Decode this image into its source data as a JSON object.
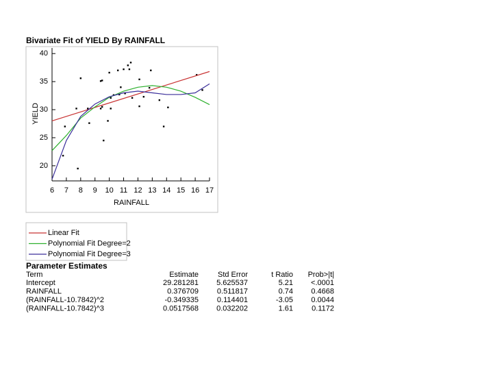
{
  "chart_data": {
    "type": "scatter",
    "title": "Bivariate Fit of YIELD By RAINFALL",
    "x_label": "RAINFALL",
    "y_label": "YIELD",
    "xlim": [
      6,
      17
    ],
    "ylim": [
      17.3,
      41
    ],
    "xticks": [
      6,
      7,
      8,
      9,
      10,
      11,
      12,
      13,
      14,
      15,
      16,
      17
    ],
    "yticks": [
      20,
      25,
      30,
      35,
      40
    ],
    "series": [
      {
        "kind": "scatter",
        "color": "#000000",
        "x": [
          6.77,
          6.9,
          7.8,
          8.0,
          7.7,
          8.5,
          8.6,
          9.4,
          9.5,
          9.4,
          9.6,
          9.5,
          9.9,
          10.0,
          10.1,
          10.1,
          10.3,
          10.6,
          10.7,
          10.8,
          11.0,
          11.1,
          11.3,
          11.4,
          11.5,
          11.6,
          12.1,
          12.1,
          12.4,
          12.9,
          12.8,
          13.5,
          13.8,
          14.1,
          16.1,
          16.5
        ],
        "values": [
          21.8,
          27.0,
          19.5,
          35.6,
          30.2,
          30.2,
          27.6,
          35.1,
          35.2,
          30.2,
          24.5,
          30.5,
          28.0,
          36.6,
          30.2,
          32.1,
          32.6,
          37.0,
          32.7,
          34.0,
          37.2,
          32.9,
          37.9,
          37.2,
          38.4,
          32.1,
          35.4,
          30.6,
          32.3,
          37.0,
          33.9,
          31.7,
          27.0,
          30.4,
          36.2,
          33.5
        ]
      },
      {
        "kind": "line",
        "name": "Linear Fit",
        "color": "#c83232",
        "x": [
          6,
          17
        ],
        "values": [
          28.0,
          36.8
        ]
      },
      {
        "kind": "line",
        "name": "Polynomial Fit Degree=2",
        "color": "#2eb02e",
        "x": [
          6,
          7,
          8,
          9,
          10,
          11,
          12,
          13,
          14,
          15,
          16,
          17
        ],
        "values": [
          22.7,
          25.4,
          28.5,
          30.5,
          32.2,
          33.3,
          34.0,
          34.3,
          34.0,
          33.3,
          32.2,
          30.9
        ]
      },
      {
        "kind": "line",
        "name": "Polynomial Fit Degree=3",
        "color": "#3a2e9a",
        "x": [
          6,
          7,
          8,
          9,
          10,
          11,
          12,
          13,
          14,
          15,
          16,
          17
        ],
        "values": [
          17.6,
          24.5,
          28.8,
          31.0,
          32.3,
          33.0,
          33.3,
          33.0,
          32.7,
          32.7,
          33.0,
          34.6
        ]
      }
    ]
  },
  "parameter_estimates": {
    "title": "Parameter Estimates",
    "header": [
      "Term",
      "Estimate",
      "Std Error",
      "t Ratio",
      "Prob>|t|"
    ],
    "rows": [
      [
        "Intercept",
        "29.281281",
        "5.625537",
        "5.21",
        "<.0001"
      ],
      [
        "RAINFALL",
        "0.376709",
        "0.511817",
        "0.74",
        "0.4668"
      ],
      [
        "(RAINFALL-10.7842)^2",
        "-0.349335",
        "0.114401",
        "-3.05",
        "0.0044"
      ],
      [
        "(RAINFALL-10.7842)^3",
        "0.0517568",
        "0.032202",
        "1.61",
        "0.1172"
      ]
    ]
  }
}
